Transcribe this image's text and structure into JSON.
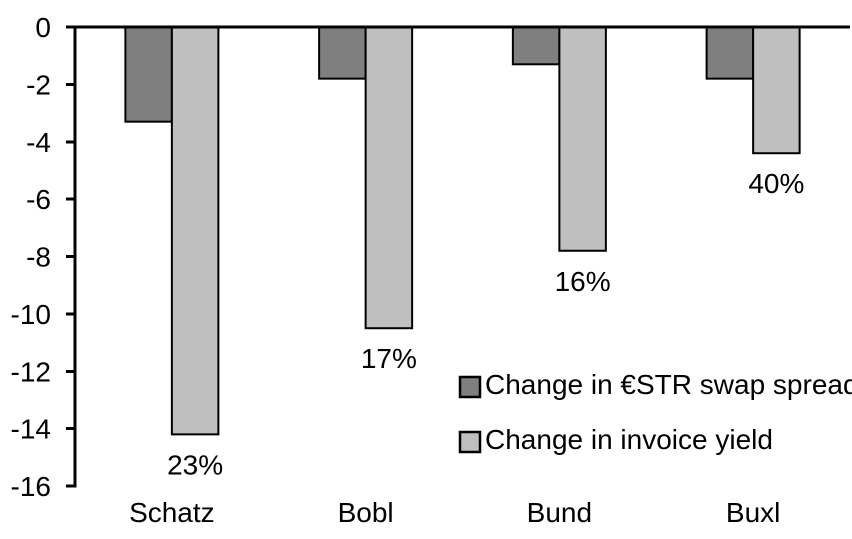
{
  "chart_data": {
    "type": "bar",
    "title": "",
    "xlabel": "",
    "ylabel": "",
    "categories": [
      "Schatz",
      "Bobl",
      "Bund",
      "Buxl"
    ],
    "series": [
      {
        "name": "Change in €STR swap spread",
        "color": "#7f7f7f",
        "values": [
          -3.3,
          -1.8,
          -1.3,
          -1.8
        ]
      },
      {
        "name": "Change in invoice yield",
        "color": "#bfbfbf",
        "values": [
          -14.2,
          -10.5,
          -7.8,
          -4.4
        ],
        "labels": [
          "23%",
          "17%",
          "16%",
          "40%"
        ]
      }
    ],
    "ylim": [
      -16,
      0
    ],
    "yticks": [
      0,
      -2,
      -4,
      -6,
      -8,
      -10,
      -12,
      -14,
      -16
    ],
    "grid": false,
    "legend_position": "inside-right-middle",
    "bar_outline_color": "#000000",
    "axis_color": "#000000",
    "text_color": "#000000",
    "background_color": "#ffffff"
  }
}
